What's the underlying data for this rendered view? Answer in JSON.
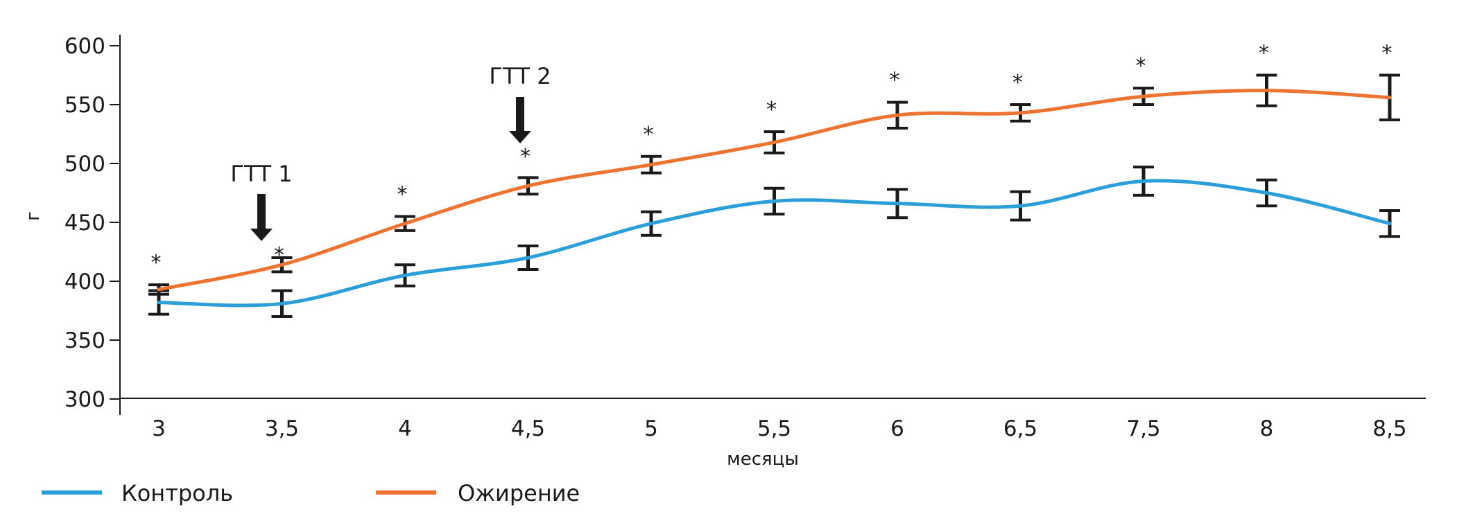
{
  "chart_data": {
    "type": "line",
    "title": "",
    "xlabel": "месяцы",
    "ylabel": "г",
    "ylim": [
      300,
      600
    ],
    "yticks": [
      300,
      350,
      400,
      450,
      500,
      550,
      600
    ],
    "categories": [
      "3",
      "3,5",
      "4",
      "4,5",
      "5",
      "5,5",
      "6",
      "6,5",
      "7,5",
      "8",
      "8,5"
    ],
    "grid": false,
    "legend_position": "bottom-left",
    "series": [
      {
        "name": "Контроль",
        "color": "#2a9fd8",
        "values": [
          382,
          381,
          405,
          420,
          449,
          468,
          466,
          464,
          485,
          475,
          449
        ],
        "error": [
          10,
          11,
          9,
          10,
          10,
          11,
          12,
          12,
          12,
          11,
          11
        ]
      },
      {
        "name": "Ожирение",
        "color": "#ed7430",
        "values": [
          393,
          414,
          449,
          481,
          499,
          518,
          541,
          543,
          557,
          562,
          556
        ],
        "error": [
          4,
          6,
          6,
          7,
          7,
          9,
          11,
          7,
          7,
          13,
          19
        ]
      }
    ],
    "significance_markers": {
      "symbol": "*",
      "categories": [
        "3",
        "3,5",
        "4",
        "4,5",
        "5",
        "5,5",
        "6",
        "6,5",
        "7,5",
        "8",
        "8,5"
      ]
    },
    "annotations": [
      {
        "label": "ГТТ 1",
        "category": "3,5",
        "type": "down-arrow"
      },
      {
        "label": "ГТТ 2",
        "category": "4,5",
        "type": "down-arrow"
      }
    ]
  }
}
